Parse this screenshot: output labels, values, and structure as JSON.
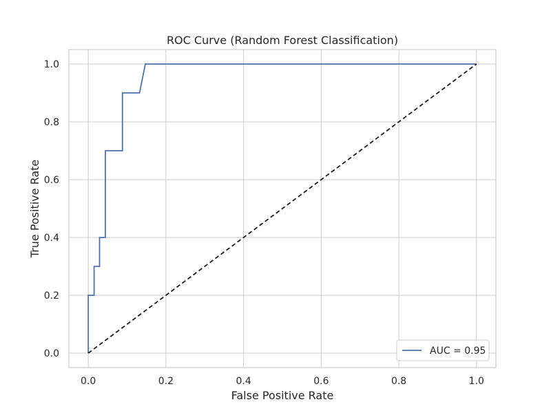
{
  "chart_data": {
    "type": "line",
    "title": "ROC Curve (Random Forest Classification)",
    "xlabel": "False Positive Rate",
    "ylabel": "True Positive Rate",
    "xlim": [
      -0.05,
      1.05
    ],
    "ylim": [
      -0.05,
      1.05
    ],
    "xticks": [
      0.0,
      0.2,
      0.4,
      0.6,
      0.8,
      1.0
    ],
    "yticks": [
      0.0,
      0.2,
      0.4,
      0.6,
      0.8,
      1.0
    ],
    "xtick_labels": [
      "0.0",
      "0.2",
      "0.4",
      "0.6",
      "0.8",
      "1.0"
    ],
    "ytick_labels": [
      "0.0",
      "0.2",
      "0.4",
      "0.6",
      "0.8",
      "1.0"
    ],
    "grid": true,
    "legend_position": "lower-right",
    "series": [
      {
        "name": "AUC = 0.95",
        "color": "#4c72b0",
        "style": "solid",
        "x": [
          0.0,
          0.0,
          0.0,
          0.015,
          0.015,
          0.029,
          0.029,
          0.044,
          0.044,
          0.088,
          0.088,
          0.132,
          0.147,
          1.0
        ],
        "y": [
          0.0,
          0.2,
          0.2,
          0.2,
          0.3,
          0.3,
          0.4,
          0.4,
          0.7,
          0.7,
          0.9,
          0.9,
          1.0,
          1.0
        ]
      },
      {
        "name": "",
        "color": "#1a1a1a",
        "style": "dashed",
        "x": [
          0.0,
          1.0
        ],
        "y": [
          0.0,
          1.0
        ]
      }
    ]
  }
}
